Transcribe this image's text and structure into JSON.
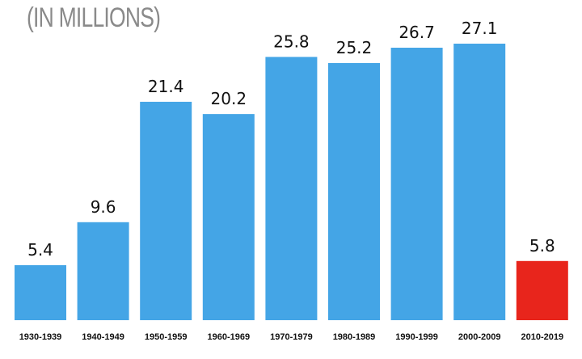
{
  "chart_data": {
    "type": "bar",
    "subtitle": "(IN MILLIONS)",
    "categories": [
      "1930-1939",
      "1940-1949",
      "1950-1959",
      "1960-1969",
      "1970-1979",
      "1980-1989",
      "1990-1999",
      "2000-2009",
      "2010-2019"
    ],
    "values": [
      5.4,
      9.6,
      21.4,
      20.2,
      25.8,
      25.2,
      26.7,
      27.1,
      5.8
    ],
    "value_labels": [
      "5.4",
      "9.6",
      "21.4",
      "20.2",
      "25.8",
      "25.2",
      "26.7",
      "27.1",
      "5.8"
    ],
    "colors": {
      "default_bar": "#44a5e6",
      "highlight_bar": "#e8251c"
    },
    "highlight_index": 8,
    "ylim": [
      0,
      27.1
    ],
    "grid": false,
    "legend": "none"
  }
}
